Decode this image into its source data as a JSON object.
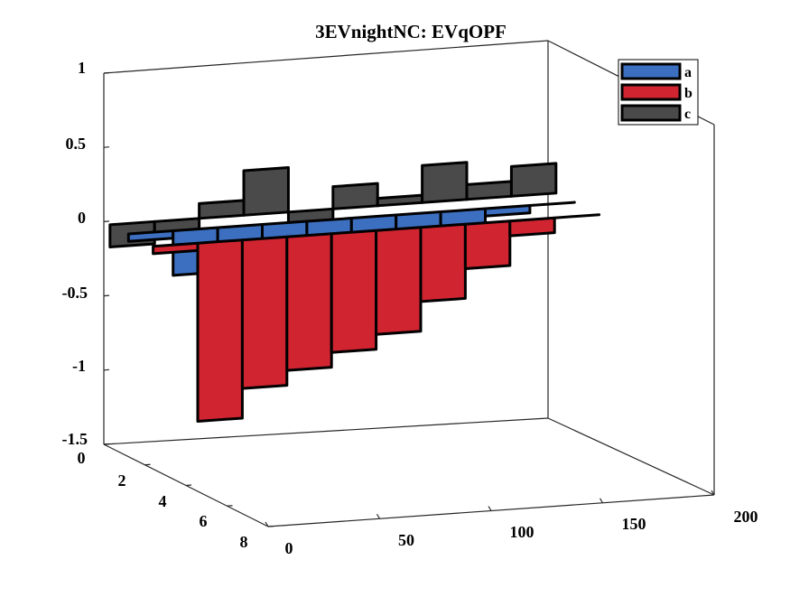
{
  "chart_data": {
    "type": "bar3d",
    "title": "3EVnightNC: EVqOPF",
    "z_ticks": [
      "1",
      "0.5",
      "0",
      "-0.5",
      "-1",
      "-1.5"
    ],
    "y_ticks": [
      "0",
      "2",
      "4",
      "6",
      "8"
    ],
    "x_ticks": [
      "0",
      "50",
      "100",
      "150",
      "200"
    ],
    "zlim": [
      -1.5,
      1
    ],
    "ylim": [
      0,
      8
    ],
    "xlim": [
      0,
      200
    ],
    "grid": false,
    "legend_position": "top-right",
    "legend": [
      {
        "name": "a",
        "color": "#3c6fc0"
      },
      {
        "name": "b",
        "color": "#d02430"
      },
      {
        "name": "c",
        "color": "#4a4a4a"
      }
    ],
    "series": [
      {
        "name": "c",
        "x": [
          0,
          20,
          40,
          60,
          80,
          100,
          120,
          140,
          160,
          180,
          200
        ],
        "z": [
          -0.15,
          -0.1,
          0.1,
          0.3,
          -0.2,
          0.15,
          0.05,
          0.25,
          0.1,
          0.2,
          -0.05
        ]
      },
      {
        "name": "a",
        "x": [
          0,
          20,
          40,
          60,
          80,
          100,
          120,
          140,
          160,
          180,
          200
        ],
        "z": [
          -0.05,
          -0.3,
          -0.4,
          -0.45,
          -0.4,
          -0.3,
          -0.1,
          -0.2,
          -0.05,
          0,
          0
        ]
      },
      {
        "name": "b",
        "x": [
          0,
          20,
          40,
          60,
          80,
          100,
          120,
          140,
          160,
          180,
          200
        ],
        "z": [
          -0.05,
          -1.2,
          -1.0,
          -0.9,
          -0.8,
          -0.7,
          -0.5,
          -0.3,
          -0.1,
          0,
          0
        ]
      }
    ]
  }
}
